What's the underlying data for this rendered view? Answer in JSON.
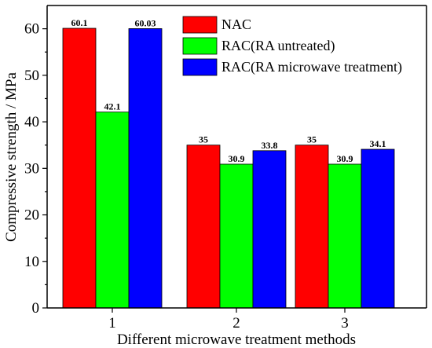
{
  "chart_data": {
    "type": "bar",
    "categories": [
      "1",
      "2",
      "3"
    ],
    "series": [
      {
        "name": "NAC",
        "values": [
          60.1,
          35,
          35
        ],
        "labels": [
          "60.1",
          "35",
          "35"
        ],
        "color": "#ff0000"
      },
      {
        "name": "RAC(RA untreated)",
        "values": [
          42.1,
          30.9,
          30.9
        ],
        "labels": [
          "42.1",
          "30.9",
          "30.9"
        ],
        "color": "#00ff00"
      },
      {
        "name": "RAC(RA microwave treatment)",
        "values": [
          60.03,
          33.8,
          34.1
        ],
        "labels": [
          "60.03",
          "33.8",
          "34.1"
        ],
        "color": "#0000ff"
      }
    ],
    "xlabel": "Different microwave treatment methods",
    "ylabel": "Compressive strength / MPa",
    "ylim": [
      0,
      65
    ],
    "yticks": [
      0,
      10,
      20,
      30,
      40,
      50,
      60
    ],
    "grid": false,
    "legend": "top-right"
  }
}
